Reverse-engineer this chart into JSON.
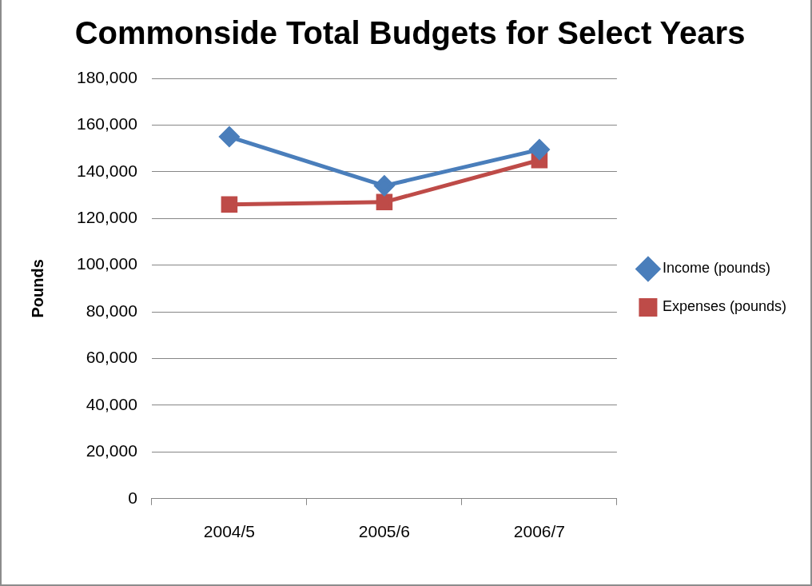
{
  "chart_data": {
    "type": "line",
    "title": "Commonside Total Budgets for Select Years",
    "ylabel": "Pounds",
    "categories": [
      "2004/5",
      "2005/6",
      "2006/7"
    ],
    "series": [
      {
        "name": "Income (pounds)",
        "color": "#4a7ebb",
        "values": [
          155000,
          134000,
          149500
        ],
        "marker": "diamond"
      },
      {
        "name": "Expenses (pounds)",
        "color": "#be4b48",
        "values": [
          126000,
          127000,
          145000
        ],
        "marker": "square"
      }
    ],
    "ylim": [
      0,
      180000
    ],
    "yticks": [
      {
        "value": 0,
        "label": "0"
      },
      {
        "value": 20000,
        "label": "20,000"
      },
      {
        "value": 40000,
        "label": "40,000"
      },
      {
        "value": 60000,
        "label": "60,000"
      },
      {
        "value": 80000,
        "label": "80,000"
      },
      {
        "value": 100000,
        "label": "100,000"
      },
      {
        "value": 120000,
        "label": "120,000"
      },
      {
        "value": 140000,
        "label": "140,000"
      },
      {
        "value": 160000,
        "label": "160,000"
      },
      {
        "value": 180000,
        "label": "180,000"
      }
    ],
    "grid": "y",
    "legend": "right",
    "line_style": "solid"
  }
}
